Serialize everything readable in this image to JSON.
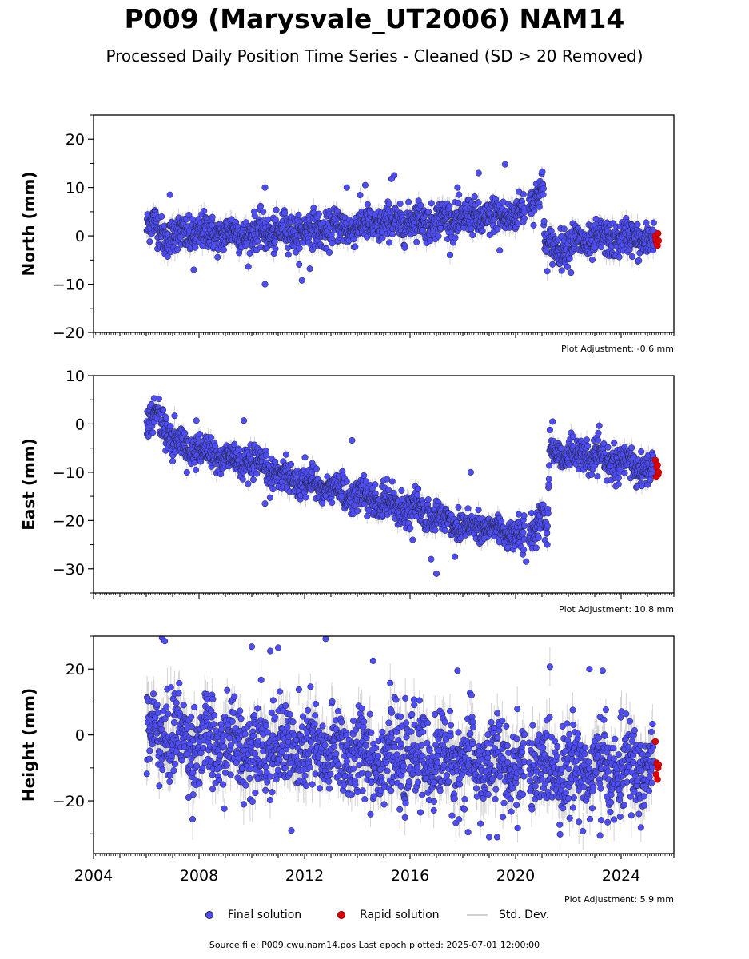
{
  "chart_data": {
    "type": "scatter",
    "title": "P009 (Marysvale_UT2006) NAM14",
    "subtitle": "Processed Daily Position Time Series - Cleaned (SD > 20 Removed)",
    "x_axis": {
      "range": [
        2004,
        2026
      ],
      "ticks": [
        "2004",
        "2008",
        "2012",
        "2016",
        "2020",
        "2024"
      ]
    },
    "series_styles": {
      "final": {
        "color": "#4d4dff",
        "edge": "#222222"
      },
      "rapid": {
        "color": "#e00000",
        "edge": "#800000"
      },
      "std": {
        "color": "#cfcfcf"
      }
    },
    "panels": [
      {
        "ylabel": "North (mm)",
        "ylim": [
          -20,
          25
        ],
        "yticks": [
          "20",
          "10",
          "0",
          "−10",
          "−20"
        ],
        "ytick_values": [
          20,
          10,
          0,
          -10,
          -20
        ],
        "plot_adjustment": "Plot Adjustment: -0.6 mm",
        "trend": [
          [
            2006.0,
            1.5
          ],
          [
            2006.3,
            2.5
          ],
          [
            2006.7,
            0.0
          ],
          [
            2008.0,
            0.5
          ],
          [
            2010.0,
            0.5
          ],
          [
            2012.0,
            1.0
          ],
          [
            2014.0,
            2.0
          ],
          [
            2016.0,
            3.0
          ],
          [
            2018.0,
            3.5
          ],
          [
            2019.5,
            4.0
          ],
          [
            2020.3,
            5.0
          ],
          [
            2020.8,
            9.0
          ],
          [
            2021.05,
            10.0
          ],
          [
            2021.1,
            -3.0
          ],
          [
            2022.0,
            -1.5
          ],
          [
            2024.0,
            -0.5
          ],
          [
            2025.3,
            -1.0
          ]
        ],
        "scatter_mm": 1.8,
        "sigma_mm": 1.6,
        "outliers": [
          [
            2006.9,
            8.5
          ],
          [
            2007.8,
            -7.0
          ],
          [
            2010.5,
            10.0
          ],
          [
            2010.5,
            -10.0
          ],
          [
            2011.9,
            -9.2
          ],
          [
            2012.2,
            -6.8
          ],
          [
            2013.6,
            10.0
          ],
          [
            2014.3,
            10.5
          ],
          [
            2015.4,
            12.5
          ],
          [
            2015.3,
            11.8
          ],
          [
            2017.8,
            10.0
          ],
          [
            2018.6,
            13.0
          ],
          [
            2019.6,
            14.8
          ],
          [
            2019.4,
            -3.0
          ],
          [
            2022.1,
            -7.6
          ]
        ],
        "rapid": [
          [
            2025.3,
            0.0
          ],
          [
            2025.35,
            -1.5
          ],
          [
            2025.4,
            0.5
          ],
          [
            2025.32,
            -0.8
          ],
          [
            2025.38,
            -2.0
          ],
          [
            2025.42,
            -1.0
          ]
        ]
      },
      {
        "ylabel": "East (mm)",
        "ylim": [
          -35,
          10
        ],
        "yticks": [
          "10",
          "0",
          "−10",
          "−20",
          "−30"
        ],
        "ytick_values": [
          10,
          0,
          -10,
          -20,
          -30
        ],
        "plot_adjustment": "Plot Adjustment: 10.8 mm",
        "trend": [
          [
            2006.0,
            0.0
          ],
          [
            2006.5,
            2.0
          ],
          [
            2007.0,
            -4.0
          ],
          [
            2008.0,
            -5.5
          ],
          [
            2010.0,
            -8.5
          ],
          [
            2012.0,
            -12.0
          ],
          [
            2014.0,
            -15.0
          ],
          [
            2016.0,
            -17.5
          ],
          [
            2018.0,
            -21.0
          ],
          [
            2019.5,
            -22.0
          ],
          [
            2020.5,
            -24.0
          ],
          [
            2021.0,
            -18.0
          ],
          [
            2021.2,
            -23.0
          ],
          [
            2021.3,
            -5.5
          ],
          [
            2023.0,
            -7.0
          ],
          [
            2025.3,
            -9.5
          ]
        ],
        "scatter_mm": 1.6,
        "sigma_mm": 1.4,
        "outliers": [
          [
            2006.3,
            5.3
          ],
          [
            2007.9,
            0.7
          ],
          [
            2009.7,
            0.7
          ],
          [
            2013.8,
            -3.4
          ],
          [
            2010.5,
            -16.5
          ],
          [
            2013.4,
            -15.0
          ],
          [
            2016.1,
            -24.0
          ],
          [
            2017.0,
            -31.0
          ],
          [
            2016.8,
            -28.0
          ],
          [
            2017.7,
            -27.5
          ],
          [
            2018.3,
            -10.0
          ],
          [
            2020.4,
            -28.5
          ],
          [
            2021.4,
            0.5
          ],
          [
            2023.9,
            -12.5
          ],
          [
            2024.6,
            -13.0
          ]
        ],
        "rapid": [
          [
            2025.3,
            -7.5
          ],
          [
            2025.35,
            -9.0
          ],
          [
            2025.4,
            -10.5
          ],
          [
            2025.33,
            -11.0
          ],
          [
            2025.38,
            -8.5
          ],
          [
            2025.42,
            -10.0
          ]
        ]
      },
      {
        "ylabel": "Height (mm)",
        "ylim": [
          -36,
          30
        ],
        "yticks": [
          "20",
          "0",
          "−20"
        ],
        "ytick_values": [
          20,
          0,
          -20
        ],
        "plot_adjustment": "Plot Adjustment: 5.9 mm",
        "trend": [
          [
            2006.0,
            0.0
          ],
          [
            2007.0,
            0.0
          ],
          [
            2008.0,
            -3.0
          ],
          [
            2010.0,
            -3.0
          ],
          [
            2012.0,
            -5.0
          ],
          [
            2014.0,
            -6.0
          ],
          [
            2016.0,
            -7.0
          ],
          [
            2018.0,
            -8.0
          ],
          [
            2020.0,
            -10.0
          ],
          [
            2022.0,
            -10.0
          ],
          [
            2024.0,
            -11.0
          ],
          [
            2025.3,
            -10.0
          ]
        ],
        "scatter_mm": 6.5,
        "sigma_mm": 5.0,
        "outliers": [
          [
            2006.6,
            29.5
          ],
          [
            2006.7,
            28.5
          ],
          [
            2012.8,
            29.2
          ],
          [
            2014.6,
            22.5
          ],
          [
            2010.0,
            26.8
          ],
          [
            2010.7,
            25.5
          ],
          [
            2011.0,
            26.5
          ],
          [
            2017.8,
            19.5
          ],
          [
            2022.8,
            20.0
          ],
          [
            2023.3,
            19.5
          ],
          [
            2011.5,
            -29.0
          ],
          [
            2018.2,
            -29.5
          ],
          [
            2019.0,
            -31.0
          ],
          [
            2019.3,
            -31.0
          ],
          [
            2023.2,
            -30.5
          ]
        ],
        "rapid": [
          [
            2025.3,
            -2.0
          ],
          [
            2025.35,
            -8.5
          ],
          [
            2025.4,
            -10.0
          ],
          [
            2025.33,
            -12.0
          ],
          [
            2025.38,
            -13.5
          ],
          [
            2025.42,
            -9.0
          ]
        ]
      }
    ],
    "legend": {
      "final": "Final solution",
      "rapid": "Rapid solution",
      "std": "Std. Dev."
    },
    "source_note": "Source file: P009.cwu.nam14.pos  Last epoch plotted: 2025-07-01 12:00:00"
  }
}
